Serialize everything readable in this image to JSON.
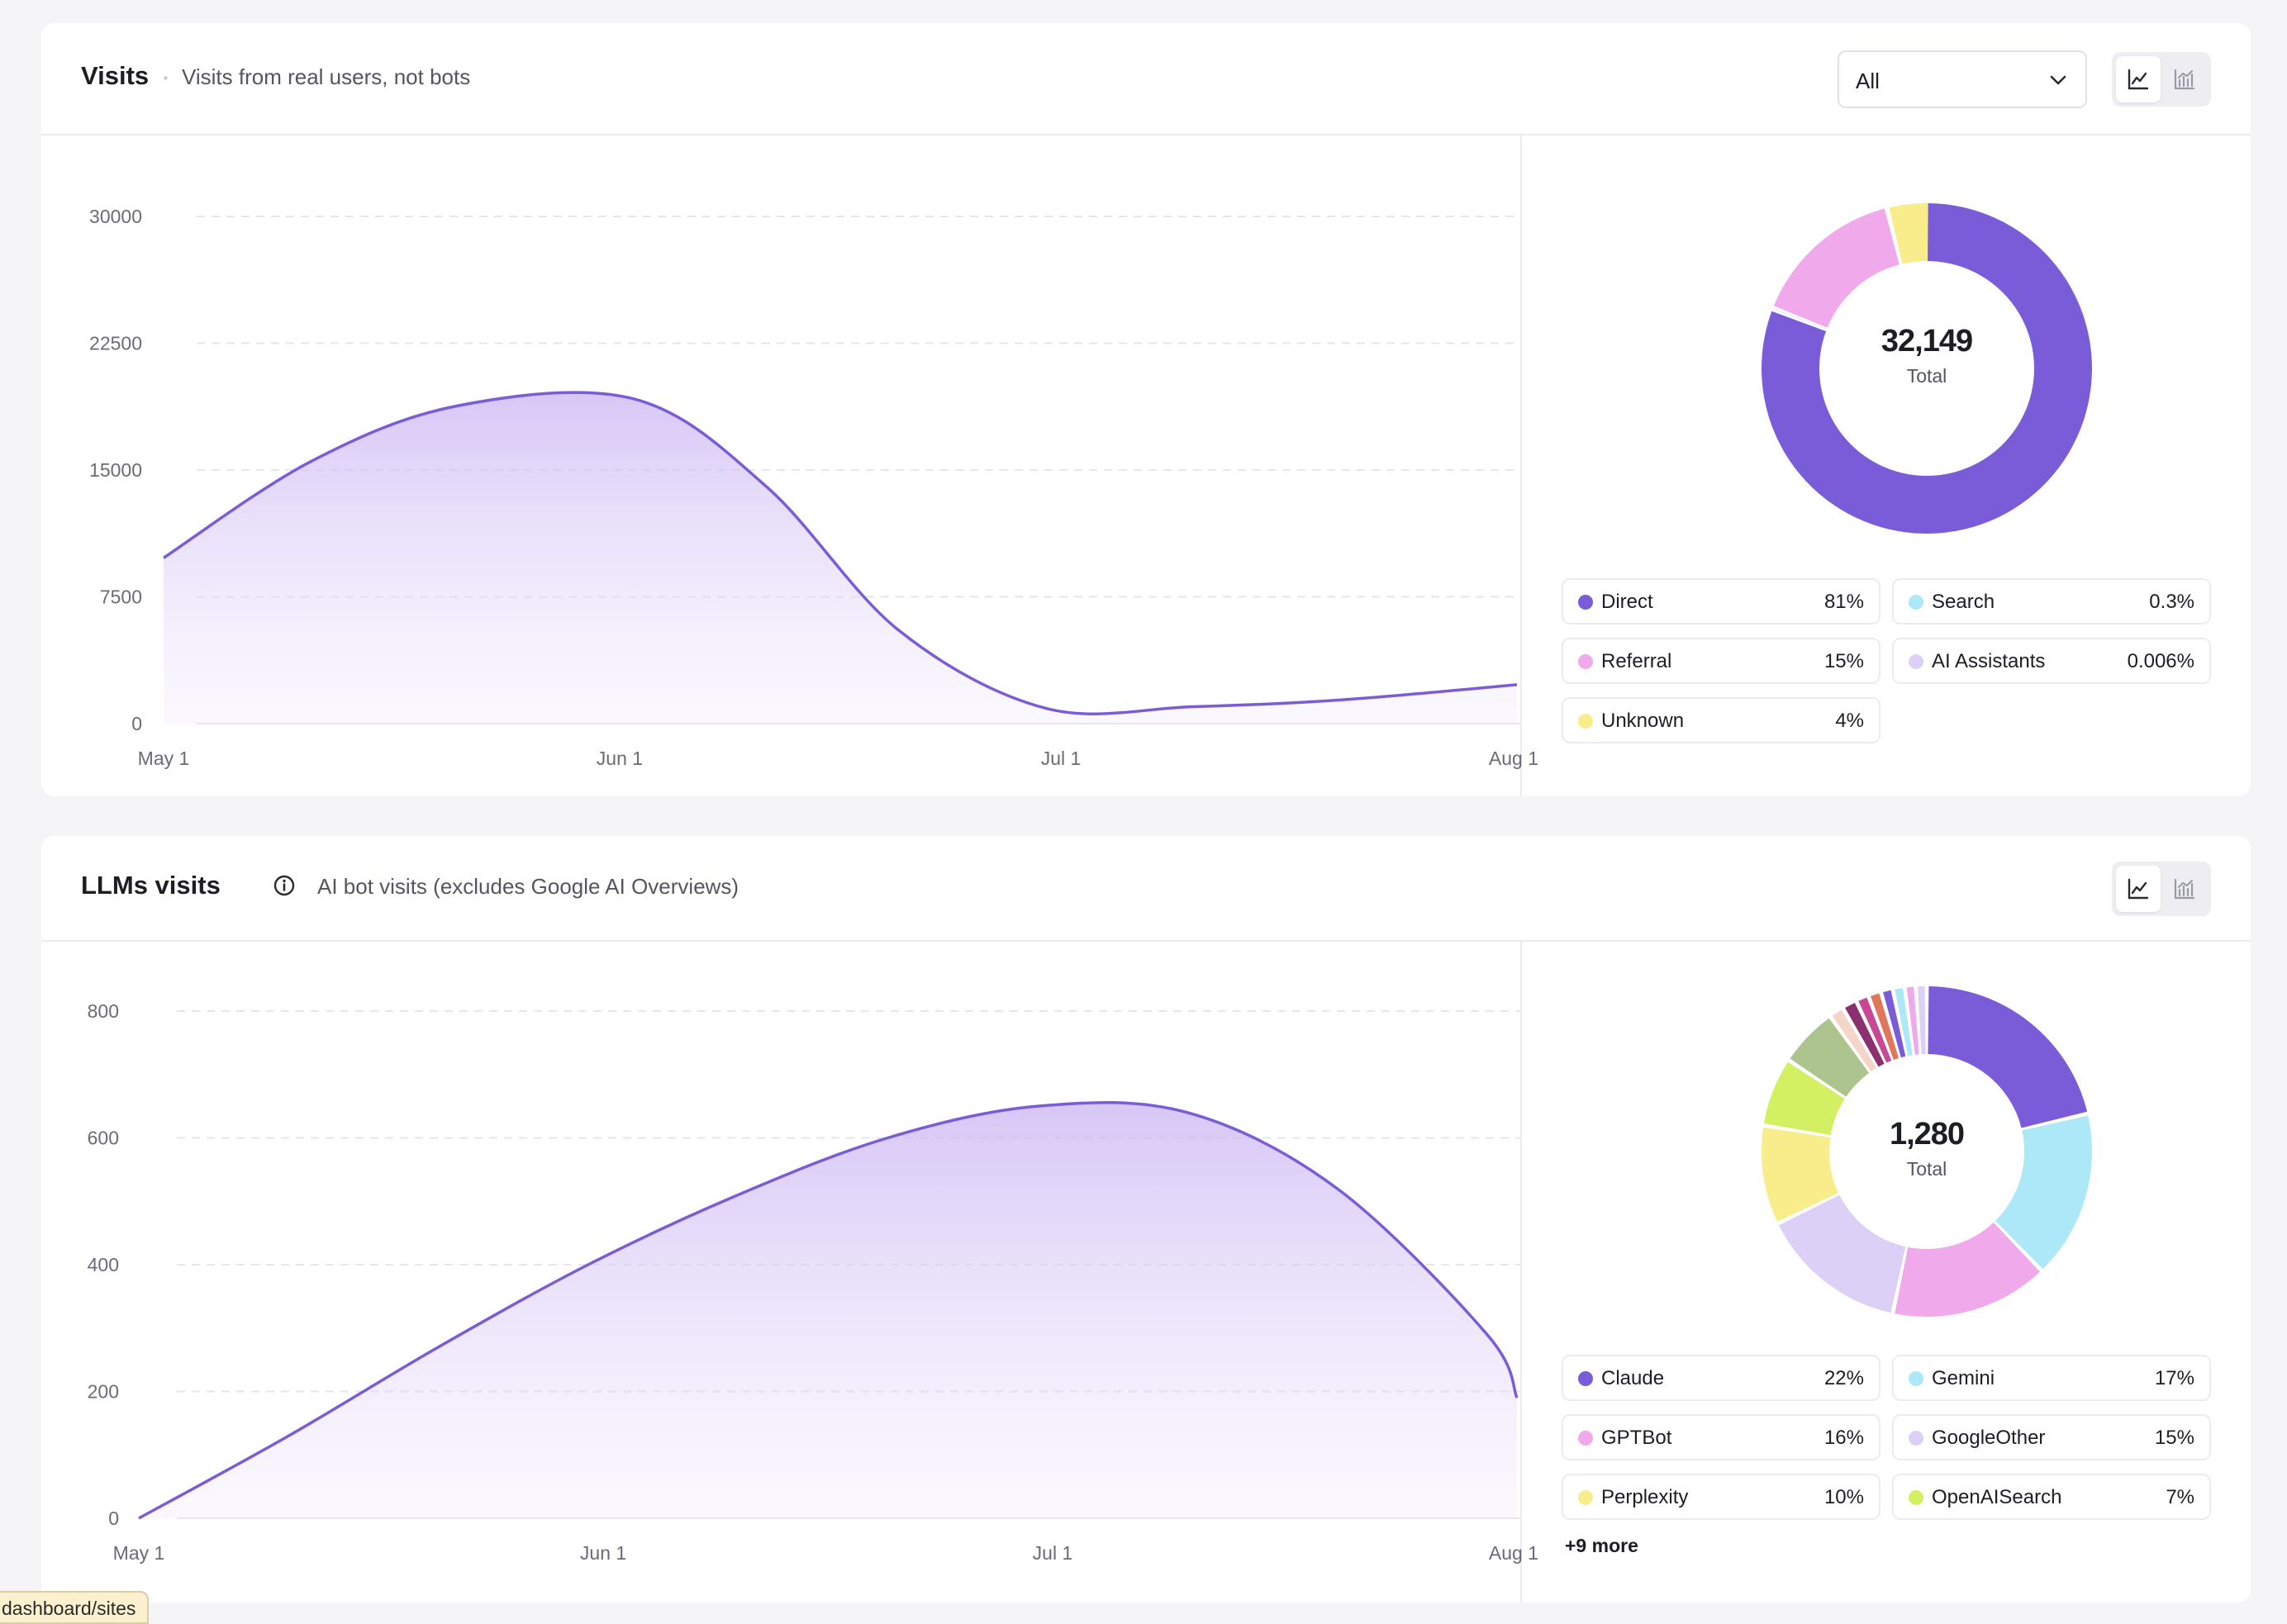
{
  "visits": {
    "title": "Visits",
    "subtitle": "Visits from real users, not bots",
    "filter": {
      "selected": "All"
    },
    "view_toggle": {
      "line_icon": "line-chart-icon",
      "bar_icon": "bar-chart-icon",
      "active": "line"
    },
    "donut": {
      "total": "32,149",
      "total_label": "Total"
    },
    "legend": [
      {
        "name": "Direct",
        "value": "81%",
        "color": "#7a5cd9"
      },
      {
        "name": "Search",
        "value": "0.3%",
        "color": "#ace8f7"
      },
      {
        "name": "Referral",
        "value": "15%",
        "color": "#f0aaec"
      },
      {
        "name": "AI Assistants",
        "value": "0.006%",
        "color": "#ddd0f7"
      },
      {
        "name": "Unknown",
        "value": "4%",
        "color": "#f9ec8b"
      }
    ]
  },
  "llm_visits": {
    "title": "LLMs visits",
    "subtitle": "AI bot visits (excludes Google AI Overviews)",
    "view_toggle": {
      "line_icon": "line-chart-icon",
      "bar_icon": "bar-chart-icon",
      "active": "line"
    },
    "donut": {
      "total": "1,280",
      "total_label": "Total"
    },
    "legend": [
      {
        "name": "Claude",
        "value": "22%",
        "color": "#7a5cd9"
      },
      {
        "name": "Gemini",
        "value": "17%",
        "color": "#ace8f7"
      },
      {
        "name": "GPTBot",
        "value": "16%",
        "color": "#f0aaec"
      },
      {
        "name": "GoogleOther",
        "value": "15%",
        "color": "#ddd0f7"
      },
      {
        "name": "Perplexity",
        "value": "10%",
        "color": "#f9ec8b"
      },
      {
        "name": "OpenAISearch",
        "value": "7%",
        "color": "#d2f062"
      }
    ],
    "more_label": "+9 more"
  },
  "status_url": "dashboard/sites",
  "chart_data": [
    {
      "type": "area",
      "x": [
        "May 1",
        "Jun 1",
        "Jul 1",
        "Aug 1"
      ],
      "x_points": [
        0,
        10,
        20,
        32,
        41,
        50,
        60,
        70,
        80,
        92
      ],
      "y_points": [
        9800,
        15500,
        18800,
        19200,
        14000,
        5500,
        900,
        1000,
        1400,
        2300
      ],
      "y_ticks": [
        0,
        7500,
        15000,
        22500,
        30000
      ],
      "ylim": [
        0,
        30000
      ],
      "color": "#7a5cd9",
      "grid": true
    },
    {
      "type": "pie",
      "labels": [
        "Direct",
        "Search",
        "Referral",
        "AI Assistants",
        "Unknown"
      ],
      "values": [
        81,
        0.3,
        15,
        0.006,
        4
      ],
      "total": "32,149"
    },
    {
      "type": "area",
      "x": [
        "May 1",
        "Jun 1",
        "Jul 1",
        "Aug 1"
      ],
      "x_points": [
        0,
        10,
        20,
        30,
        40,
        50,
        60,
        70,
        80,
        90,
        92
      ],
      "y_points": [
        0,
        130,
        270,
        400,
        510,
        600,
        650,
        640,
        520,
        290,
        190
      ],
      "y_ticks": [
        0,
        200,
        400,
        600,
        800
      ],
      "ylim": [
        0,
        800
      ],
      "color": "#7a5cd9",
      "grid": true
    },
    {
      "type": "pie",
      "labels": [
        "Claude",
        "Gemini",
        "GPTBot",
        "GoogleOther",
        "Perplexity",
        "OpenAISearch"
      ],
      "values": [
        22,
        17,
        16,
        15,
        10,
        7
      ],
      "other_slices": [
        6,
        1.5,
        1.5,
        1.3,
        1.3,
        1.2,
        1.2,
        1.1,
        1.1
      ],
      "other_colors": [
        "#aec48f",
        "#f5d5c8",
        "#8c2f6e",
        "#c94893",
        "#e0765a",
        "#7a5cd9",
        "#ace8f7",
        "#f0aaec",
        "#ddd0f7"
      ],
      "total": "1,280"
    }
  ]
}
